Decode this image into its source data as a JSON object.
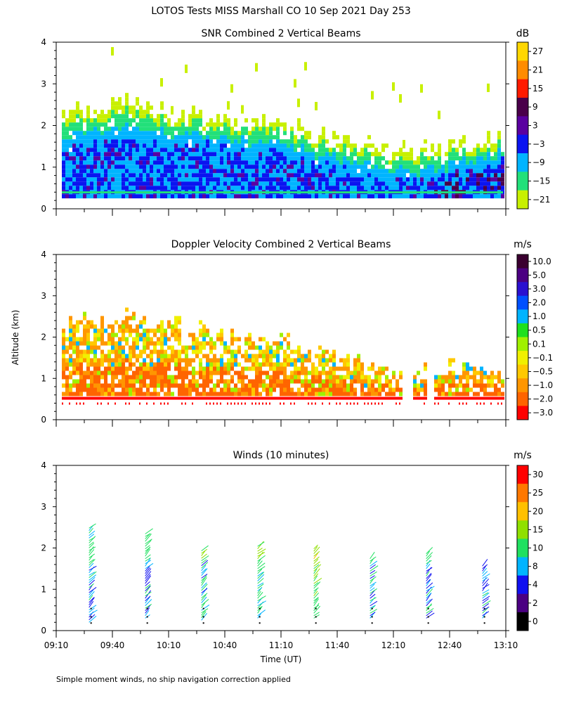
{
  "figure": {
    "title": "LOTOS Tests MISS Marshall CO  10 Sep 2021 Day 253",
    "ylabel": "Altitude (km)",
    "xlabel": "Time (UT)",
    "footnote": "Simple moment winds, no ship navigation correction applied",
    "x_ticks": [
      "09:10",
      "09:40",
      "10:10",
      "10:40",
      "11:10",
      "11:40",
      "12:10",
      "12:40",
      "13:10"
    ],
    "y_ticks": [
      "0",
      "1",
      "2",
      "3",
      "4"
    ]
  },
  "chart_data": [
    {
      "type": "heatmap",
      "title": "SNR Combined 2 Vertical Beams",
      "units": "dB",
      "x_range": [
        "09:10",
        "13:10"
      ],
      "ylim": [
        0,
        4
      ],
      "colorbar": {
        "labels": [
          "27",
          "21",
          "15",
          "9",
          "3",
          "−3",
          "−9",
          "−15",
          "−21"
        ],
        "colors": [
          "#ffd700",
          "#ff8c00",
          "#ff1a00",
          "#4a004a",
          "#5a00a0",
          "#0a14f0",
          "#00b4ff",
          "#22e07a",
          "#c8f000"
        ]
      },
      "profile": [
        {
          "time": "09:10",
          "echo_top_km": 2.2,
          "core_top_km": 1.3,
          "base_km": 0.25
        },
        {
          "time": "09:40",
          "echo_top_km": 2.5,
          "core_top_km": 1.6,
          "base_km": 0.25
        },
        {
          "time": "10:10",
          "echo_top_km": 2.3,
          "core_top_km": 1.5,
          "base_km": 0.25
        },
        {
          "time": "10:40",
          "echo_top_km": 2.1,
          "core_top_km": 1.4,
          "base_km": 0.25
        },
        {
          "time": "11:10",
          "echo_top_km": 2.0,
          "core_top_km": 1.3,
          "base_km": 0.25
        },
        {
          "time": "11:40",
          "echo_top_km": 1.6,
          "core_top_km": 0.9,
          "base_km": 0.25
        },
        {
          "time": "12:10",
          "echo_top_km": 1.3,
          "core_top_km": 0.6,
          "base_km": 0.25
        },
        {
          "time": "12:40",
          "echo_top_km": 1.5,
          "core_top_km": 0.8,
          "base_km": 0.25
        },
        {
          "time": "13:10",
          "echo_top_km": 1.6,
          "core_top_km": 1.1,
          "base_km": 0.25
        }
      ],
      "grid": false
    },
    {
      "type": "heatmap",
      "title": "Doppler Velocity Combined 2 Vertical Beams",
      "units": "m/s",
      "x_range": [
        "09:10",
        "13:10"
      ],
      "ylim": [
        0,
        4
      ],
      "colorbar": {
        "labels": [
          "10.0",
          "5.0",
          "3.0",
          "2.0",
          "1.0",
          "0.5",
          "0.1",
          "−0.1",
          "−0.5",
          "−1.0",
          "−2.0",
          "−3.0"
        ],
        "colors": [
          "#3a0030",
          "#4b0082",
          "#2a10d0",
          "#0050ff",
          "#00b4ff",
          "#1ee01e",
          "#a0f000",
          "#f0f000",
          "#ffc800",
          "#ff9600",
          "#ff6400",
          "#ff0000"
        ]
      },
      "profile": [
        {
          "time": "09:10",
          "echo_top_km": 2.2,
          "base_km": 0.45
        },
        {
          "time": "09:40",
          "echo_top_km": 2.4,
          "base_km": 0.45
        },
        {
          "time": "10:10",
          "echo_top_km": 2.3,
          "base_km": 0.45
        },
        {
          "time": "10:40",
          "echo_top_km": 2.0,
          "base_km": 0.45
        },
        {
          "time": "11:10",
          "echo_top_km": 1.9,
          "base_km": 0.45
        },
        {
          "time": "11:40",
          "echo_top_km": 1.5,
          "base_km": 0.45
        },
        {
          "time": "12:10",
          "echo_top_km": 1.0,
          "base_km": 0.45
        },
        {
          "time": "12:40",
          "echo_top_km": 1.2,
          "base_km": 0.45
        },
        {
          "time": "13:10",
          "echo_top_km": 1.3,
          "base_km": 0.45
        }
      ],
      "grid": false
    },
    {
      "type": "scatter",
      "title": "Winds (10 minutes)",
      "units": "m/s",
      "x_range": [
        "09:10",
        "13:10"
      ],
      "ylim": [
        0,
        4
      ],
      "colorbar": {
        "labels": [
          "30",
          "25",
          "20",
          "15",
          "10",
          "8",
          "4",
          "2",
          "0"
        ],
        "colors": [
          "#ff0000",
          "#ff7800",
          "#ffc000",
          "#90e000",
          "#20e060",
          "#00b4ff",
          "#1010f0",
          "#4b0082",
          "#000000"
        ]
      },
      "profiles": [
        {
          "time": "09:29",
          "bottom_km": 0.2,
          "top_km": 2.5,
          "speed_ms": 8
        },
        {
          "time": "09:59",
          "bottom_km": 0.3,
          "top_km": 2.35,
          "speed_ms": 8
        },
        {
          "time": "10:29",
          "bottom_km": 0.25,
          "top_km": 1.95,
          "speed_ms": 10
        },
        {
          "time": "10:59",
          "bottom_km": 0.3,
          "top_km": 2.05,
          "speed_ms": 12
        },
        {
          "time": "11:29",
          "bottom_km": 0.3,
          "top_km": 2.0,
          "speed_ms": 14
        },
        {
          "time": "11:59",
          "bottom_km": 0.3,
          "top_km": 1.8,
          "speed_ms": 8
        },
        {
          "time": "12:29",
          "bottom_km": 0.3,
          "top_km": 1.9,
          "speed_ms": 8
        },
        {
          "time": "12:59",
          "bottom_km": 0.3,
          "top_km": 1.6,
          "speed_ms": 8
        }
      ],
      "grid": false
    }
  ]
}
